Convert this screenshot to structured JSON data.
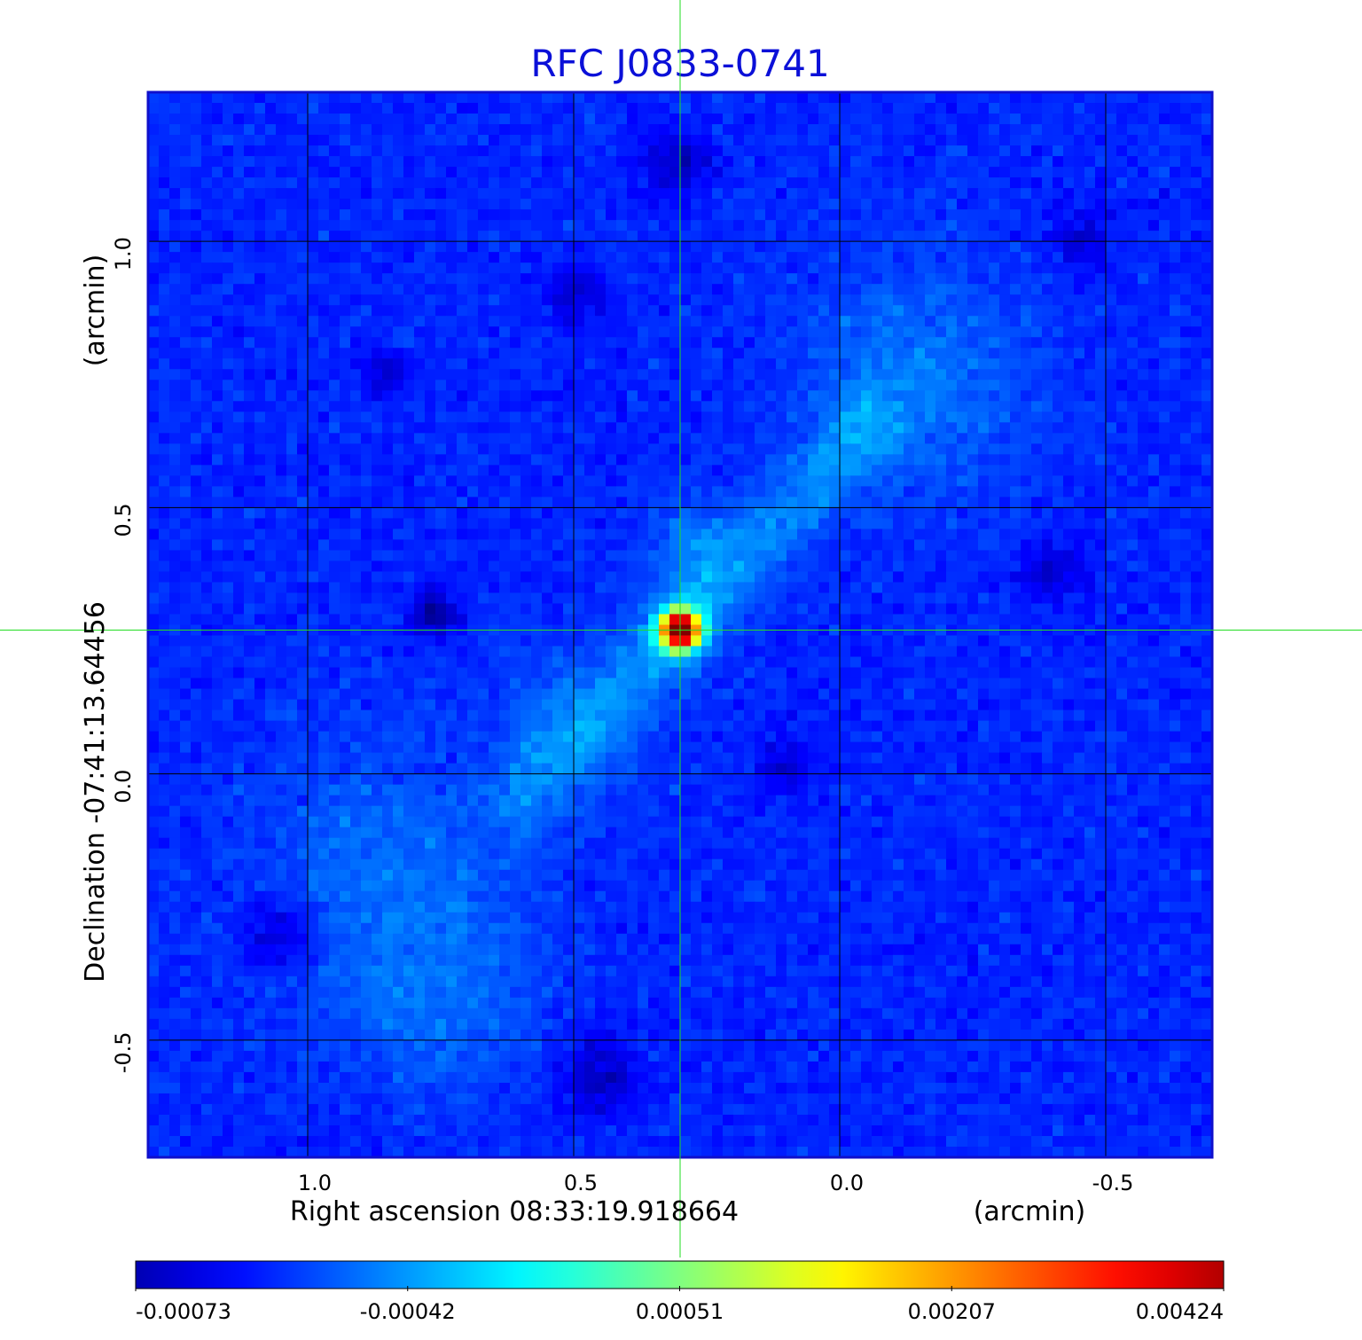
{
  "chart_data": {
    "type": "heatmap",
    "title": "RFC J0833-0741",
    "title_color": "#0b10d8",
    "xlabel": "Right ascension  08:33:19.918664",
    "xunit": "(arcmin)",
    "ylabel": "Declination  -07:41:13.64456",
    "yunit": "(arcmin)",
    "xlim": [
      1.3,
      -0.7
    ],
    "ylim": [
      -0.72,
      1.28
    ],
    "x_ticks": [
      1.0,
      0.5,
      0.0,
      -0.5
    ],
    "x_tick_labels": [
      "1.0",
      "0.5",
      "0.0",
      "-0.5"
    ],
    "y_ticks": [
      1.0,
      0.5,
      0.0,
      -0.5
    ],
    "y_tick_labels": [
      "1.0",
      "0.5",
      "0.0",
      "-0.5"
    ],
    "grid": true,
    "crosshair": {
      "x": 0.3,
      "y": 0.27,
      "color": "#22dd22"
    },
    "frame_color": "#1010cc",
    "colormap": "jet",
    "colorbar": {
      "position": "bottom",
      "min": -0.00073,
      "max": 0.00424,
      "tick_labels": [
        "-0.00073",
        "-0.00042",
        "0.00051",
        "0.00207",
        "0.00424"
      ]
    },
    "image_grid": {
      "nx": 100,
      "ny": 100,
      "noise_rms": 0.00016,
      "baseline": 7e-05
    },
    "features": [
      {
        "kind": "peak",
        "x": 0.3,
        "y": 0.27,
        "value": 0.00424,
        "sigma": 0.025
      },
      {
        "kind": "jet",
        "from": [
          0.3,
          0.27
        ],
        "to": [
          -0.05,
          0.65
        ],
        "value": 0.00045,
        "width": 0.05
      },
      {
        "kind": "jet",
        "from": [
          0.3,
          0.27
        ],
        "to": [
          0.6,
          -0.05
        ],
        "value": 0.00035,
        "width": 0.05
      },
      {
        "kind": "blob",
        "x": -0.15,
        "y": 0.75,
        "value": 0.0004,
        "sigma": 0.15
      },
      {
        "kind": "blob",
        "x": 0.85,
        "y": -0.2,
        "value": 0.00035,
        "sigma": 0.18
      },
      {
        "kind": "blob",
        "x": 0.75,
        "y": -0.45,
        "value": 0.00025,
        "sigma": 0.12
      },
      {
        "kind": "blob",
        "x": 0.5,
        "y": 0.1,
        "value": 0.0003,
        "sigma": 0.1
      },
      {
        "kind": "blob",
        "x": 0.27,
        "y": 0.43,
        "value": 0.0004,
        "sigma": 0.06
      },
      {
        "kind": "dip",
        "x": 0.76,
        "y": 0.3,
        "value": -0.00073,
        "sigma": 0.03
      },
      {
        "kind": "dip",
        "x": 0.3,
        "y": 1.15,
        "value": -0.00055,
        "sigma": 0.04
      },
      {
        "kind": "dip",
        "x": 0.45,
        "y": -0.57,
        "value": -0.0005,
        "sigma": 0.05
      },
      {
        "kind": "dip",
        "x": 0.85,
        "y": 0.75,
        "value": -0.0004,
        "sigma": 0.03
      },
      {
        "kind": "dip",
        "x": 1.05,
        "y": -0.3,
        "value": -0.00045,
        "sigma": 0.05
      },
      {
        "kind": "dip",
        "x": -0.4,
        "y": 0.38,
        "value": -0.00035,
        "sigma": 0.04
      },
      {
        "kind": "dip",
        "x": 0.5,
        "y": 0.9,
        "value": -0.0004,
        "sigma": 0.04
      },
      {
        "kind": "dip",
        "x": -0.45,
        "y": 1.0,
        "value": -0.0004,
        "sigma": 0.04
      },
      {
        "kind": "dip",
        "x": 0.1,
        "y": 0.02,
        "value": -0.00035,
        "sigma": 0.04
      }
    ]
  }
}
